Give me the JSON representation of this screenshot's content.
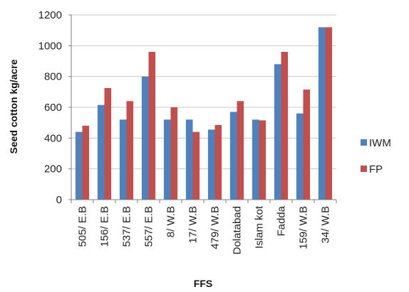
{
  "colors": {
    "IWM": "#4F81BD",
    "FP": "#C0504D",
    "gridline": "#c8c8c8",
    "axis": "#7f7f7f"
  },
  "chart_data": {
    "type": "bar",
    "title": "",
    "xlabel": "FFS",
    "ylabel": "Seed cotton kg/acre",
    "ylim": [
      0,
      1200
    ],
    "yticks": [
      0,
      200,
      400,
      600,
      800,
      1000,
      1200
    ],
    "grid": true,
    "legend_position": "right",
    "categories": [
      "505/ E.B",
      "156/ E.B",
      "537/ E.B",
      "557/ E.B",
      "8/ W.B",
      "17/ W.B",
      "479/ W.B",
      "Dolatabad",
      "Islam kot",
      "Fadda",
      "159/ W.B",
      "34/ W.B"
    ],
    "series": [
      {
        "name": "IWM",
        "values": [
          440,
          615,
          520,
          800,
          520,
          520,
          455,
          570,
          520,
          880,
          560,
          1120
        ]
      },
      {
        "name": "FP",
        "values": [
          480,
          725,
          640,
          960,
          600,
          440,
          485,
          640,
          515,
          960,
          715,
          1120
        ]
      }
    ]
  }
}
